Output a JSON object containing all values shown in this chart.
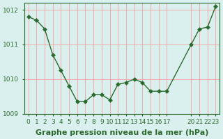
{
  "x": [
    0,
    1,
    2,
    3,
    4,
    5,
    6,
    7,
    8,
    9,
    10,
    11,
    12,
    13,
    14,
    15,
    16,
    17,
    20,
    21,
    22,
    23
  ],
  "y": [
    1011.8,
    1011.7,
    1011.45,
    1010.7,
    1010.25,
    1009.8,
    1009.35,
    1009.35,
    1009.55,
    1009.55,
    1009.4,
    1009.85,
    1009.9,
    1010.0,
    1009.9,
    1009.65,
    1009.65,
    1009.65,
    1011.0,
    1011.45,
    1011.5,
    1012.1
  ],
  "line_color": "#2d6a2d",
  "marker": "D",
  "marker_size": 3,
  "bg_color": "#d9f0ef",
  "grid_color": "#f0b0b0",
  "title": "Graphe pression niveau de la mer (hPa)",
  "xlim": [
    -0.5,
    23.5
  ],
  "ylim": [
    1009.0,
    1012.2
  ],
  "yticks": [
    1009,
    1010,
    1011,
    1012
  ],
  "xtick_positions": [
    0,
    1,
    2,
    3,
    4,
    5,
    6,
    7,
    8,
    9,
    10,
    11,
    12,
    13,
    14,
    15,
    16,
    17,
    20,
    21,
    22,
    23
  ],
  "xtick_labels": [
    "0",
    "1",
    "2",
    "3",
    "4",
    "5",
    "6",
    "7",
    "8",
    "9",
    "10",
    "11",
    "12",
    "13",
    "14",
    "15",
    "16",
    "17",
    "20",
    "21",
    "22",
    "23"
  ],
  "title_fontsize": 8,
  "tick_fontsize": 6.5
}
